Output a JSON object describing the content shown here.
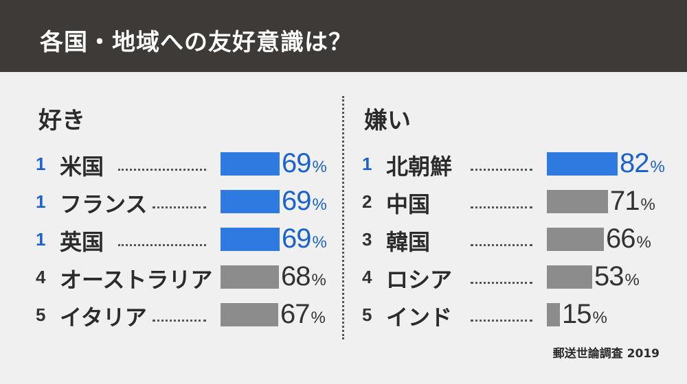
{
  "title": "各国・地域への友好意識は？",
  "source": "郵送世論調査 2019",
  "colors": {
    "header_bg": "#3e3a37",
    "highlight": "#2e7ae0",
    "highlight_text": "#1a62d0",
    "normal_bar": "#8c8c8c",
    "normal_text": "#333333"
  },
  "chart_data": [
    {
      "type": "bar",
      "title": "好き",
      "unit": "%",
      "xlim": [
        0,
        100
      ],
      "ranks": [
        "1",
        "1",
        "1",
        "4",
        "5"
      ],
      "categories": [
        "米国",
        "フランス",
        "英国",
        "オーストラリア",
        "イタリア"
      ],
      "values": [
        69,
        69,
        69,
        68,
        67
      ],
      "highlighted": [
        true,
        true,
        true,
        false,
        false
      ]
    },
    {
      "type": "bar",
      "title": "嫌い",
      "unit": "%",
      "xlim": [
        0,
        100
      ],
      "ranks": [
        "1",
        "2",
        "3",
        "4",
        "5"
      ],
      "categories": [
        "北朝鮮",
        "中国",
        "韓国",
        "ロシア",
        "インド"
      ],
      "values": [
        82,
        71,
        66,
        53,
        15
      ],
      "highlighted": [
        true,
        false,
        false,
        false,
        false
      ]
    }
  ]
}
